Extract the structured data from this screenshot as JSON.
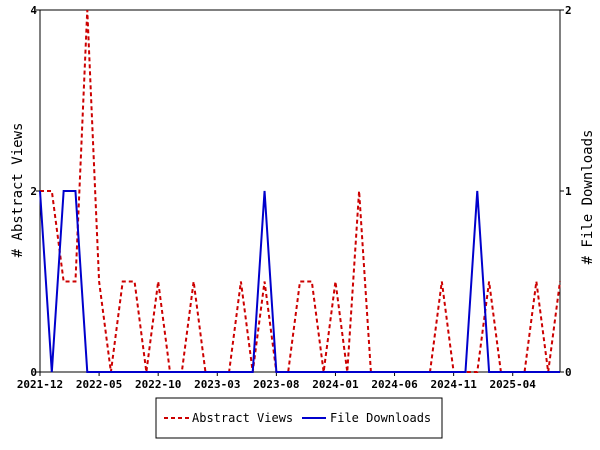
{
  "chart_data": {
    "type": "line",
    "ylabel_left": "# Abstract Views",
    "ylabel_right": "# File Downloads",
    "ylim_left": [
      0,
      4
    ],
    "ylim_right": [
      0,
      2
    ],
    "yticks_left": [
      "0",
      "2",
      "4"
    ],
    "yticks_right": [
      "0",
      "1",
      "2"
    ],
    "x_tick_labels": [
      "2021-12",
      "2022-05",
      "2022-10",
      "2023-03",
      "2023-08",
      "2024-01",
      "2024-06",
      "2024-11",
      "2025-04"
    ],
    "x": [
      "2021-12",
      "2022-01",
      "2022-02",
      "2022-03",
      "2022-04",
      "2022-05",
      "2022-06",
      "2022-07",
      "2022-08",
      "2022-09",
      "2022-10",
      "2022-11",
      "2022-12",
      "2023-01",
      "2023-02",
      "2023-03",
      "2023-04",
      "2023-05",
      "2023-06",
      "2023-07",
      "2023-08",
      "2023-09",
      "2023-10",
      "2023-11",
      "2023-12",
      "2024-01",
      "2024-02",
      "2024-03",
      "2024-04",
      "2024-05",
      "2024-06",
      "2024-07",
      "2024-08",
      "2024-09",
      "2024-10",
      "2024-11",
      "2024-12",
      "2025-01",
      "2025-02",
      "2025-03",
      "2025-04",
      "2025-05",
      "2025-06",
      "2025-07",
      "2025-08"
    ],
    "series": [
      {
        "name": "Abstract Views",
        "axis": "left",
        "color": "#cc0000",
        "style": "dashed",
        "values": [
          2,
          2,
          1,
          1,
          4,
          1,
          0,
          1,
          1,
          0,
          1,
          0,
          0,
          1,
          0,
          0,
          0,
          1,
          0,
          1,
          0,
          0,
          1,
          1,
          0,
          1,
          0,
          2,
          0,
          0,
          0,
          0,
          0,
          0,
          1,
          0,
          0,
          0,
          1,
          0,
          0,
          0,
          1,
          0,
          1
        ]
      },
      {
        "name": "File Downloads",
        "axis": "right",
        "color": "#0000cc",
        "style": "solid",
        "values": [
          1,
          0,
          1,
          1,
          0,
          0,
          0,
          0,
          0,
          0,
          0,
          0,
          0,
          0,
          0,
          0,
          0,
          0,
          0,
          1,
          0,
          0,
          0,
          0,
          0,
          0,
          0,
          0,
          0,
          0,
          0,
          0,
          0,
          0,
          0,
          0,
          0,
          1,
          0,
          0,
          0,
          0,
          0,
          0,
          0
        ]
      }
    ],
    "legend_position": "bottom"
  }
}
